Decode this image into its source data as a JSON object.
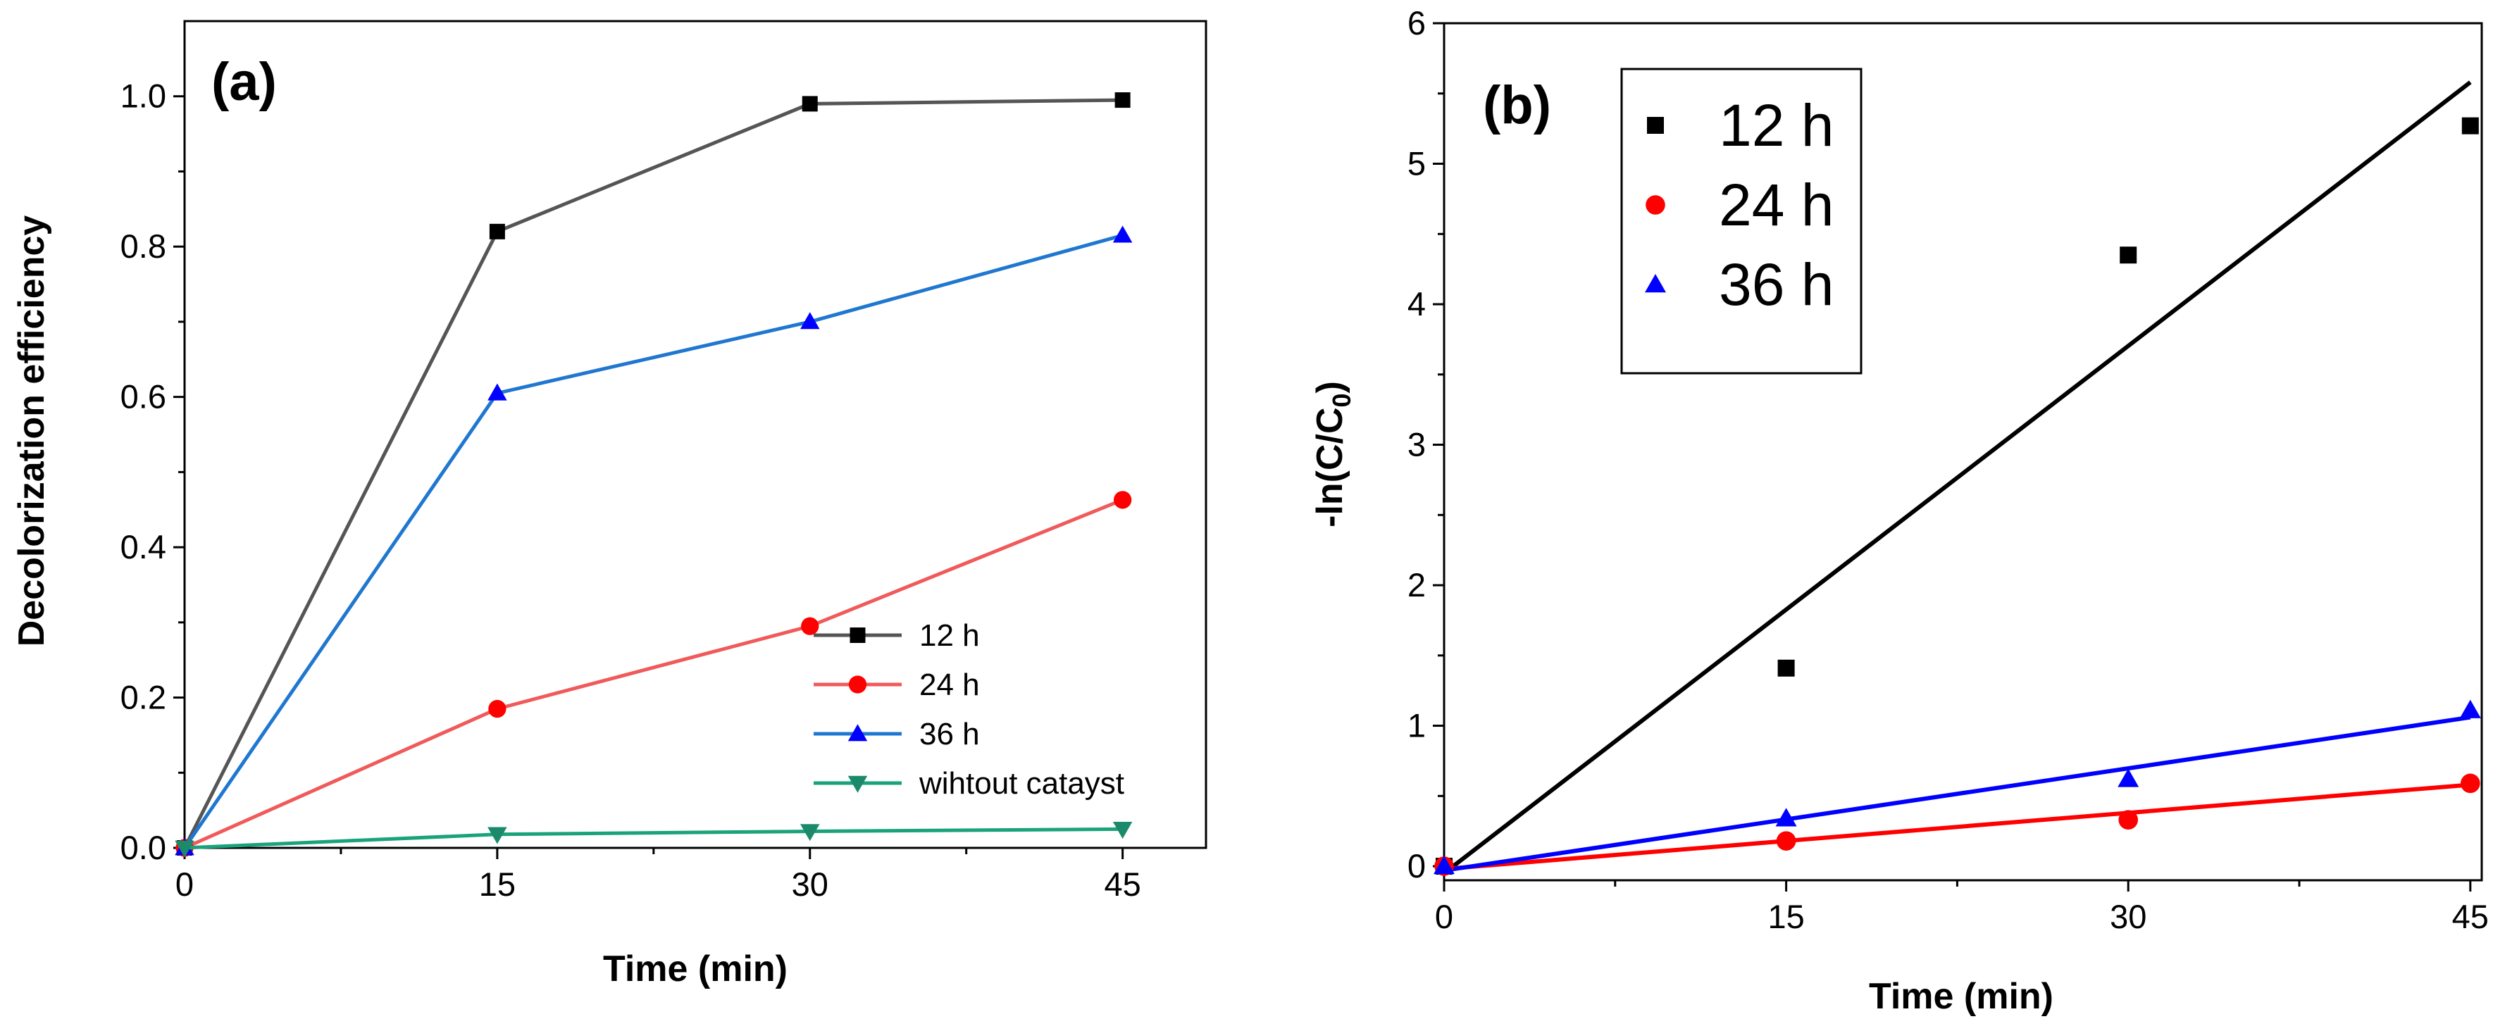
{
  "chart_data": [
    {
      "type": "line",
      "panel_label": "(a)",
      "xlabel": "Time (min)",
      "ylabel": "Decolorization efficiency",
      "xlim": [
        0,
        49
      ],
      "ylim": [
        0,
        1.1
      ],
      "xticks": [
        0,
        15,
        30,
        45
      ],
      "xtick_labels": [
        "0",
        "15",
        "30",
        "45"
      ],
      "yticks": [
        0,
        0.2,
        0.4,
        0.6,
        0.8,
        1.0
      ],
      "ytick_labels": [
        "0.0",
        "0.2",
        "0.4",
        "0.6",
        "0.8",
        "1.0"
      ],
      "legend_position": "lower-right",
      "x": [
        0,
        15,
        30,
        45
      ],
      "series": [
        {
          "name": "12 h",
          "values": [
            0,
            0.82,
            0.99,
            0.995
          ],
          "color": "#555555",
          "marker_color": "#000000",
          "marker": "square"
        },
        {
          "name": "24 h",
          "values": [
            0,
            0.185,
            0.295,
            0.463
          ],
          "color": "#f05a5a",
          "marker_color": "#ff0000",
          "marker": "circle"
        },
        {
          "name": "36 h",
          "values": [
            0,
            0.605,
            0.7,
            0.815
          ],
          "color": "#1f77d0",
          "marker_color": "#0000ff",
          "marker": "triangle-up"
        },
        {
          "name": "wihtout catayst",
          "values": [
            0,
            0.018,
            0.022,
            0.025
          ],
          "color": "#1aa37a",
          "marker_color": "#1a8a6a",
          "marker": "triangle-down"
        }
      ]
    },
    {
      "type": "scatter",
      "panel_label": "(b)",
      "xlabel": "Time (min)",
      "ylabel": "-ln(C/C",
      "ylabel_subscript": "0",
      "ylabel_close": ")",
      "xlim": [
        0,
        45.5
      ],
      "ylim": [
        -0.1,
        6
      ],
      "xticks": [
        0,
        15,
        30,
        45
      ],
      "xtick_labels": [
        "0",
        "15",
        "30",
        "45"
      ],
      "yticks": [
        0,
        1,
        2,
        3,
        4,
        5,
        6
      ],
      "ytick_labels": [
        "0",
        "1",
        "2",
        "3",
        "4",
        "5",
        "6"
      ],
      "legend_position": "top-left",
      "x": [
        0,
        15,
        30,
        45
      ],
      "series": [
        {
          "name": "12 h",
          "values": [
            0,
            1.41,
            4.35,
            5.27
          ],
          "fit": [
            -0.05,
            5.58
          ],
          "color": "#000000",
          "marker": "square"
        },
        {
          "name": "24 h",
          "values": [
            0,
            0.18,
            0.33,
            0.59
          ],
          "fit": [
            -0.02,
            0.58
          ],
          "color": "#ff0000",
          "marker": "circle"
        },
        {
          "name": "36 h",
          "values": [
            0,
            0.34,
            0.62,
            1.11
          ],
          "fit": [
            -0.03,
            1.06
          ],
          "color": "#0000ff",
          "marker": "triangle-up"
        }
      ]
    }
  ]
}
